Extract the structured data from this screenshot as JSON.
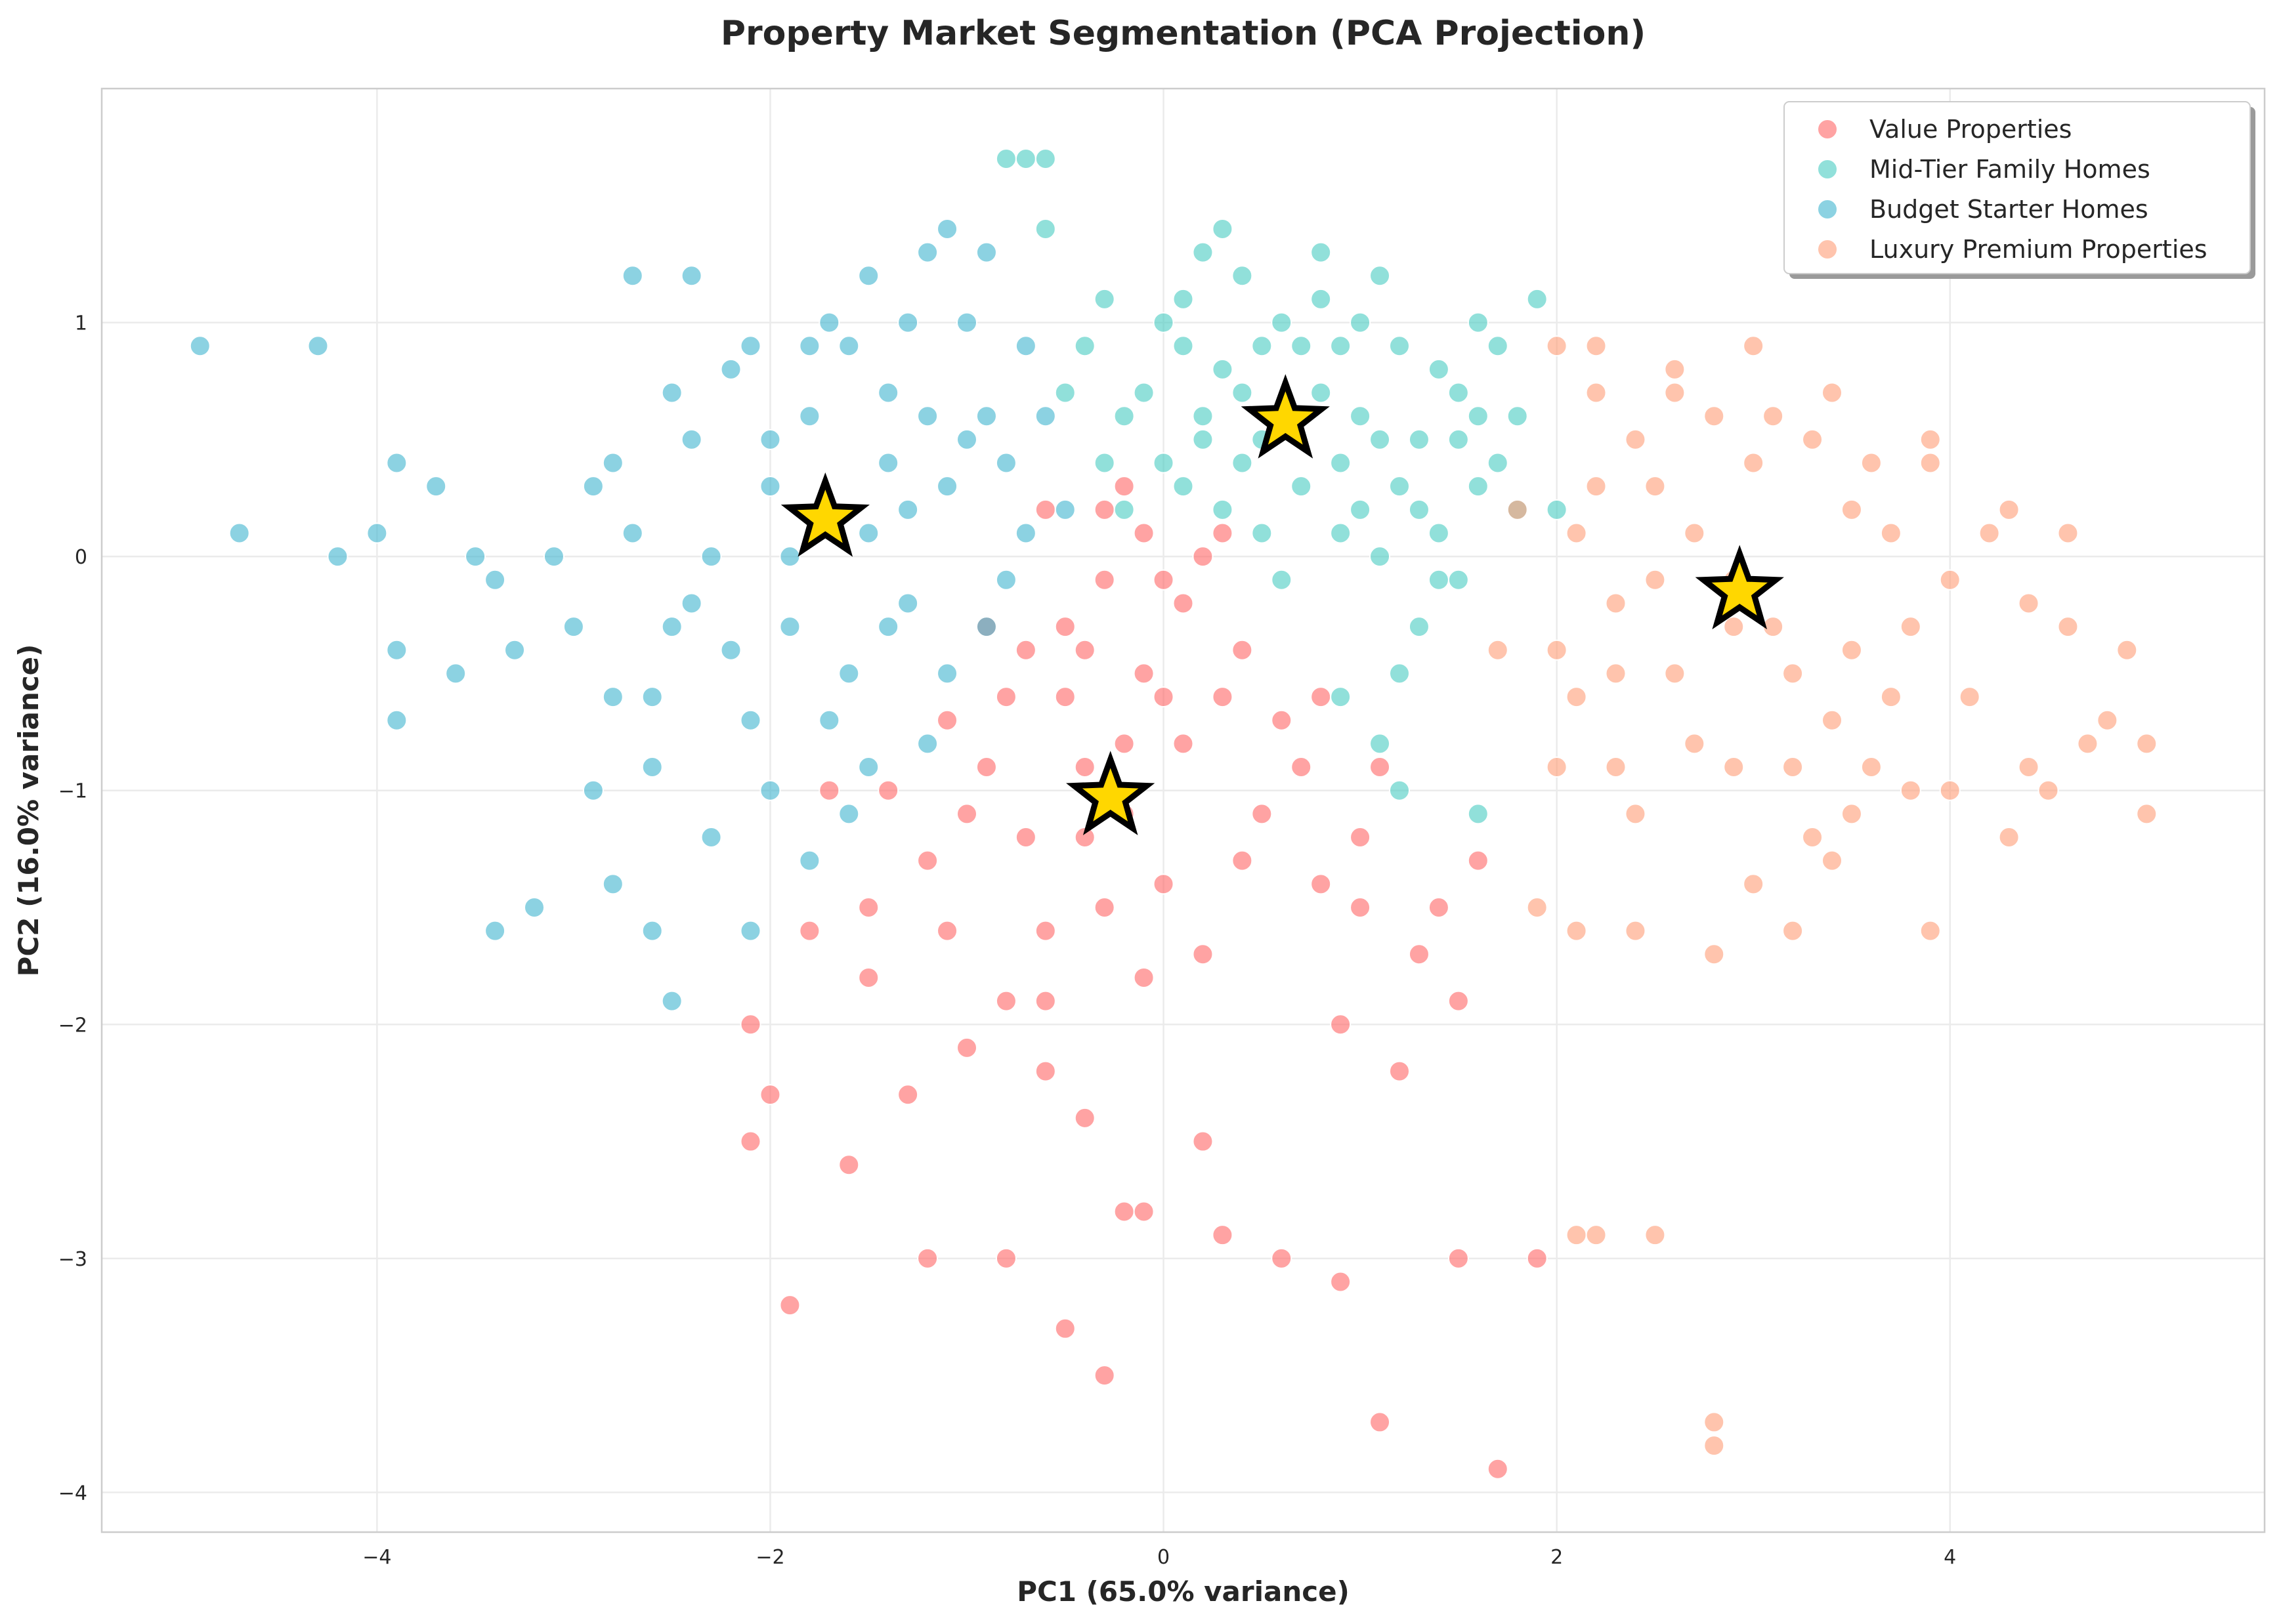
{
  "chart_data": {
    "type": "scatter",
    "title": "Property Market Segmentation (PCA Projection)",
    "xlabel": "PC1 (65.0% variance)",
    "ylabel": "PC2 (16.0% variance)",
    "xlim": [
      -5.4,
      5.6
    ],
    "ylim": [
      -4.17,
      2.0
    ],
    "x_ticks": [
      -4,
      -2,
      0,
      2,
      4
    ],
    "y_ticks": [
      1,
      0,
      -1,
      -2,
      -3,
      -4
    ],
    "x_tick_labels": [
      "−4",
      "−2",
      "0",
      "2",
      "4"
    ],
    "y_tick_labels": [
      "1",
      "0",
      "−1",
      "−2",
      "−3",
      "−4"
    ],
    "grid": true,
    "legend_position": "top-right",
    "series": [
      {
        "name": "Value Properties",
        "color": "#FF6B6B",
        "centroid": [
          -0.27,
          -1.03
        ],
        "points": [
          [
            -0.3,
            -0.1
          ],
          [
            -0.5,
            -0.3
          ],
          [
            -0.1,
            -0.5
          ],
          [
            0.1,
            -0.2
          ],
          [
            -0.7,
            -0.4
          ],
          [
            -0.2,
            -0.8
          ],
          [
            0.3,
            -0.6
          ],
          [
            -0.9,
            -0.9
          ],
          [
            -0.4,
            -1.2
          ],
          [
            0.0,
            -1.4
          ],
          [
            -1.2,
            -1.3
          ],
          [
            0.5,
            -1.1
          ],
          [
            -0.6,
            -1.6
          ],
          [
            -1.5,
            -1.8
          ],
          [
            0.7,
            -0.9
          ],
          [
            -0.8,
            -1.9
          ],
          [
            0.2,
            -1.7
          ],
          [
            -1.0,
            -2.1
          ],
          [
            1.0,
            -1.5
          ],
          [
            -1.3,
            -2.3
          ],
          [
            -0.4,
            -2.4
          ],
          [
            0.9,
            -2.0
          ],
          [
            -1.6,
            -2.6
          ],
          [
            -0.2,
            -2.8
          ],
          [
            1.2,
            -2.2
          ],
          [
            -1.9,
            -3.2
          ],
          [
            -0.5,
            -3.3
          ],
          [
            1.1,
            -3.7
          ],
          [
            1.7,
            -3.9
          ],
          [
            -2.1,
            -2.0
          ],
          [
            -2.0,
            -2.3
          ],
          [
            -2.1,
            -2.5
          ],
          [
            -1.8,
            -1.6
          ],
          [
            -1.2,
            -3.0
          ],
          [
            -0.8,
            -3.0
          ],
          [
            0.6,
            -3.0
          ],
          [
            0.9,
            -3.1
          ],
          [
            1.5,
            -3.0
          ],
          [
            1.9,
            -3.0
          ],
          [
            -0.3,
            -3.5
          ],
          [
            0.3,
            -2.9
          ],
          [
            -0.1,
            -2.8
          ],
          [
            1.5,
            -1.9
          ],
          [
            1.4,
            -1.5
          ],
          [
            1.6,
            -1.3
          ],
          [
            1.1,
            -0.9
          ],
          [
            0.8,
            -0.6
          ],
          [
            -1.4,
            -1.0
          ],
          [
            -0.1,
            0.1
          ],
          [
            0.0,
            -0.1
          ],
          [
            0.2,
            0.0
          ],
          [
            -0.6,
            0.2
          ],
          [
            -0.3,
            0.2
          ],
          [
            -0.5,
            -0.6
          ],
          [
            -0.2,
            -1.1
          ],
          [
            0.4,
            -1.3
          ],
          [
            -0.7,
            -1.2
          ],
          [
            -1.1,
            -0.7
          ],
          [
            -0.9,
            -0.3
          ],
          [
            0.4,
            -0.4
          ],
          [
            0.6,
            -0.7
          ],
          [
            -0.4,
            -0.9
          ],
          [
            -0.1,
            -1.8
          ],
          [
            -0.6,
            -2.2
          ],
          [
            0.2,
            -2.5
          ],
          [
            -1.5,
            -1.5
          ],
          [
            -1.0,
            -1.1
          ],
          [
            0.1,
            -0.8
          ],
          [
            -0.3,
            -1.5
          ],
          [
            -0.8,
            -0.6
          ],
          [
            1.3,
            -1.7
          ],
          [
            0.8,
            -1.4
          ],
          [
            -0.2,
            0.3
          ],
          [
            0.3,
            0.1
          ],
          [
            -0.6,
            -1.9
          ],
          [
            -1.1,
            -1.6
          ],
          [
            -0.4,
            -0.4
          ],
          [
            0.0,
            -0.6
          ],
          [
            1.0,
            -1.2
          ],
          [
            -1.7,
            -1.0
          ]
        ]
      },
      {
        "name": "Mid-Tier Family Homes",
        "color": "#4ECDC4",
        "centroid": [
          0.62,
          0.58
        ],
        "points": [
          [
            0.6,
            0.6
          ],
          [
            0.3,
            0.8
          ],
          [
            0.9,
            0.4
          ],
          [
            1.2,
            0.9
          ],
          [
            0.1,
            0.3
          ],
          [
            0.8,
            1.1
          ],
          [
            1.5,
            0.7
          ],
          [
            -0.2,
            0.6
          ],
          [
            0.4,
            1.2
          ],
          [
            1.0,
            0.2
          ],
          [
            1.3,
            0.5
          ],
          [
            0.5,
            0.1
          ],
          [
            -0.4,
            0.9
          ],
          [
            1.7,
            0.9
          ],
          [
            0.2,
            1.3
          ],
          [
            1.1,
            1.2
          ],
          [
            1.6,
            0.3
          ],
          [
            -0.6,
            1.4
          ],
          [
            0.7,
            0.9
          ],
          [
            1.4,
            0.1
          ],
          [
            0.0,
            1.0
          ],
          [
            1.8,
            0.6
          ],
          [
            -0.8,
            1.7
          ],
          [
            -0.7,
            1.7
          ],
          [
            -0.6,
            1.7
          ],
          [
            -0.3,
            1.1
          ],
          [
            0.3,
            1.4
          ],
          [
            1.9,
            1.1
          ],
          [
            2.0,
            0.2
          ],
          [
            1.5,
            -0.1
          ],
          [
            1.2,
            -0.5
          ],
          [
            1.1,
            -0.8
          ],
          [
            1.2,
            -1.0
          ],
          [
            1.6,
            -1.1
          ],
          [
            1.3,
            -0.3
          ],
          [
            0.9,
            0.1
          ],
          [
            0.6,
            -0.1
          ],
          [
            0.4,
            0.4
          ],
          [
            0.2,
            0.5
          ],
          [
            -0.1,
            0.7
          ],
          [
            0.8,
            0.7
          ],
          [
            1.0,
            0.6
          ],
          [
            1.2,
            0.3
          ],
          [
            1.4,
            0.8
          ],
          [
            1.6,
            1.0
          ],
          [
            0.5,
            0.9
          ],
          [
            0.3,
            0.2
          ],
          [
            -0.3,
            0.4
          ],
          [
            0.1,
            0.9
          ],
          [
            0.9,
            0.9
          ],
          [
            1.1,
            0.5
          ],
          [
            1.3,
            0.2
          ],
          [
            0.7,
            0.3
          ],
          [
            0.6,
            1.0
          ],
          [
            0.2,
            0.6
          ],
          [
            1.7,
            0.4
          ],
          [
            0.4,
            0.7
          ],
          [
            0.0,
            0.4
          ],
          [
            -0.5,
            0.7
          ],
          [
            1.5,
            0.5
          ],
          [
            1.8,
            0.2
          ],
          [
            0.8,
            1.3
          ],
          [
            0.1,
            1.1
          ],
          [
            1.0,
            1.0
          ],
          [
            0.5,
            0.5
          ],
          [
            -0.2,
            0.2
          ],
          [
            1.4,
            -0.1
          ],
          [
            1.6,
            0.6
          ],
          [
            0.9,
            -0.6
          ],
          [
            1.1,
            0.0
          ]
        ]
      },
      {
        "name": "Budget Starter Homes",
        "color": "#45B7D1",
        "centroid": [
          -1.72,
          0.16
        ],
        "points": [
          [
            -1.7,
            0.2
          ],
          [
            -2.0,
            0.5
          ],
          [
            -1.4,
            0.7
          ],
          [
            -2.3,
            0.0
          ],
          [
            -1.1,
            0.3
          ],
          [
            -1.8,
            0.9
          ],
          [
            -2.5,
            -0.3
          ],
          [
            -1.3,
            -0.2
          ],
          [
            -2.8,
            0.4
          ],
          [
            -0.9,
            0.6
          ],
          [
            -1.6,
            -0.5
          ],
          [
            -2.1,
            -0.7
          ],
          [
            -3.1,
            0.0
          ],
          [
            -1.0,
            1.0
          ],
          [
            -2.6,
            -0.9
          ],
          [
            -3.4,
            -0.1
          ],
          [
            -1.5,
            1.2
          ],
          [
            -2.9,
            -1.0
          ],
          [
            -3.7,
            0.3
          ],
          [
            -0.8,
            -0.1
          ],
          [
            -2.2,
            0.8
          ],
          [
            -1.2,
            1.3
          ],
          [
            -3.3,
            -0.4
          ],
          [
            -4.9,
            0.9
          ],
          [
            -4.3,
            0.9
          ],
          [
            -4.7,
            0.1
          ],
          [
            -4.2,
            0.0
          ],
          [
            -4.0,
            0.1
          ],
          [
            -3.9,
            0.4
          ],
          [
            -3.9,
            -0.4
          ],
          [
            -3.9,
            -0.7
          ],
          [
            -3.6,
            -0.5
          ],
          [
            -3.4,
            -1.6
          ],
          [
            -3.2,
            -1.5
          ],
          [
            -2.7,
            1.2
          ],
          [
            -2.4,
            1.2
          ],
          [
            -2.8,
            -1.4
          ],
          [
            -2.6,
            -1.6
          ],
          [
            -2.5,
            -1.9
          ],
          [
            -2.1,
            -1.6
          ],
          [
            -1.8,
            -1.3
          ],
          [
            -1.7,
            -0.7
          ],
          [
            -1.5,
            -0.9
          ],
          [
            -1.9,
            -0.3
          ],
          [
            -1.4,
            0.4
          ],
          [
            -1.2,
            0.6
          ],
          [
            -1.6,
            0.9
          ],
          [
            -2.0,
            0.3
          ],
          [
            -2.4,
            0.5
          ],
          [
            -2.7,
            0.1
          ],
          [
            -2.2,
            -0.4
          ],
          [
            -1.8,
            0.6
          ],
          [
            -1.5,
            0.1
          ],
          [
            -1.1,
            -0.5
          ],
          [
            -1.3,
            1.0
          ],
          [
            -0.9,
            1.3
          ],
          [
            -0.7,
            0.9
          ],
          [
            -0.5,
            0.2
          ],
          [
            -0.8,
            0.4
          ],
          [
            -2.9,
            0.3
          ],
          [
            -3.0,
            -0.3
          ],
          [
            -2.3,
            -1.2
          ],
          [
            -2.0,
            -1.0
          ],
          [
            -1.6,
            -1.1
          ],
          [
            -2.6,
            -0.6
          ],
          [
            -3.5,
            0.0
          ],
          [
            -1.9,
            0.0
          ],
          [
            -1.2,
            -0.8
          ],
          [
            -1.0,
            0.5
          ],
          [
            -1.4,
            -0.3
          ],
          [
            -1.7,
            1.0
          ],
          [
            -2.1,
            0.9
          ],
          [
            -0.6,
            0.6
          ],
          [
            -0.7,
            0.1
          ],
          [
            -2.4,
            -0.2
          ],
          [
            -2.8,
            -0.6
          ],
          [
            -1.3,
            0.2
          ],
          [
            -0.9,
            -0.3
          ],
          [
            -1.1,
            1.4
          ],
          [
            -2.5,
            0.7
          ]
        ]
      },
      {
        "name": "Luxury Premium Properties",
        "color": "#FFA07A",
        "centroid": [
          2.93,
          -0.15
        ],
        "points": [
          [
            2.9,
            -0.1
          ],
          [
            2.5,
            0.3
          ],
          [
            3.2,
            -0.5
          ],
          [
            2.2,
            0.7
          ],
          [
            3.5,
            0.2
          ],
          [
            2.7,
            -0.8
          ],
          [
            3.8,
            -0.3
          ],
          [
            2.0,
            -0.4
          ],
          [
            3.1,
            0.6
          ],
          [
            4.1,
            -0.6
          ],
          [
            2.4,
            -1.1
          ],
          [
            3.6,
            -0.9
          ],
          [
            2.1,
            0.1
          ],
          [
            4.4,
            -0.2
          ],
          [
            3.3,
            -1.2
          ],
          [
            2.6,
            0.8
          ],
          [
            3.9,
            0.4
          ],
          [
            4.7,
            -0.8
          ],
          [
            2.3,
            -0.9
          ],
          [
            3.0,
            0.9
          ],
          [
            4.2,
            0.1
          ],
          [
            5.0,
            -1.1
          ],
          [
            2.8,
            -1.7
          ],
          [
            3.4,
            -1.3
          ],
          [
            4.5,
            -1.0
          ],
          [
            1.9,
            -1.5
          ],
          [
            2.0,
            0.9
          ],
          [
            2.2,
            0.9
          ],
          [
            2.6,
            0.7
          ],
          [
            2.8,
            0.6
          ],
          [
            3.0,
            0.4
          ],
          [
            3.3,
            0.5
          ],
          [
            3.6,
            0.4
          ],
          [
            3.9,
            0.5
          ],
          [
            4.3,
            0.2
          ],
          [
            4.6,
            0.1
          ],
          [
            4.9,
            -0.4
          ],
          [
            5.0,
            -0.8
          ],
          [
            4.8,
            -0.7
          ],
          [
            4.4,
            -0.9
          ],
          [
            4.0,
            -1.0
          ],
          [
            3.7,
            -0.6
          ],
          [
            3.5,
            -0.4
          ],
          [
            3.2,
            -0.9
          ],
          [
            2.9,
            -0.3
          ],
          [
            2.6,
            -0.5
          ],
          [
            2.3,
            -0.2
          ],
          [
            2.1,
            -0.6
          ],
          [
            2.0,
            -0.9
          ],
          [
            2.1,
            -1.6
          ],
          [
            2.4,
            -1.6
          ],
          [
            3.0,
            -1.4
          ],
          [
            3.2,
            -1.6
          ],
          [
            3.9,
            -1.6
          ],
          [
            4.3,
            -1.2
          ],
          [
            3.5,
            -1.1
          ],
          [
            2.8,
            -3.8
          ],
          [
            2.8,
            -3.7
          ],
          [
            2.1,
            -2.9
          ],
          [
            2.2,
            -2.9
          ],
          [
            2.5,
            -2.9
          ],
          [
            1.7,
            -0.4
          ],
          [
            1.8,
            0.2
          ],
          [
            2.4,
            0.5
          ],
          [
            3.4,
            0.7
          ],
          [
            3.7,
            0.1
          ],
          [
            4.0,
            -0.1
          ],
          [
            2.7,
            0.1
          ],
          [
            3.1,
            -0.3
          ],
          [
            3.4,
            -0.7
          ],
          [
            2.5,
            -0.1
          ],
          [
            2.2,
            0.3
          ],
          [
            4.6,
            -0.3
          ],
          [
            3.8,
            -1.0
          ],
          [
            2.9,
            -0.9
          ],
          [
            2.3,
            -0.5
          ]
        ]
      }
    ]
  }
}
